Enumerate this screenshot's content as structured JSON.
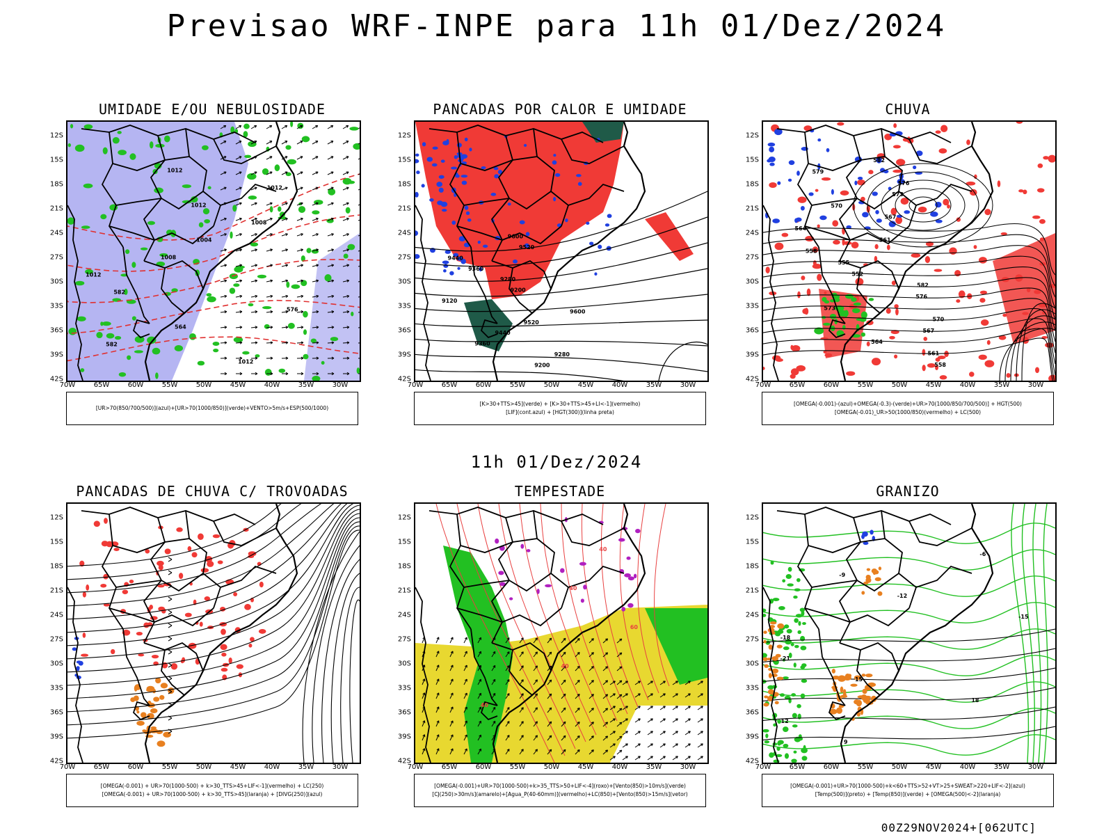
{
  "title": "Previsao WRF-INPE  para 11h 01/Dez/2024",
  "mid_title": "11h 01/Dez/2024",
  "footer": "00Z29NOV2024+[062UTC]",
  "lat_ticks": [
    "12S",
    "15S",
    "18S",
    "21S",
    "24S",
    "27S",
    "30S",
    "33S",
    "36S",
    "39S",
    "42S"
  ],
  "lon_ticks": [
    "70W",
    "65W",
    "60W",
    "55W",
    "50W",
    "45W",
    "40W",
    "35W",
    "30W"
  ],
  "colors": {
    "blue_shade": "#a8a8f0",
    "red_shade": "#f03a36",
    "green_contour": "#22c022",
    "dark_green": "#1f5a48",
    "yellow": "#e8d830",
    "orange": "#e88020",
    "purple": "#b020c0",
    "blue_contour": "#2040e0"
  },
  "panels": [
    {
      "title": "UMIDADE E/OU NEBULOSIDADE",
      "legend": [
        "[UR>70(850/700/500)](azul)+[UR>70(1000/850)](verde)+VENTO>5m/s+ESP(500/1000)"
      ],
      "contour_labels": [
        "1012",
        "1012",
        "1012",
        "1008",
        "1004",
        "1008",
        "1012",
        "582",
        "576",
        "564",
        "582",
        "1012"
      ]
    },
    {
      "title": "PANCADAS POR CALOR E UMIDADE",
      "legend": [
        "[K>30+TTS>45](verde) + [K>30+TTS>45+LI<-1](vermelho)",
        "[LIF](cont.azul) + [HGT(300)](linha preta)"
      ],
      "contour_labels": [
        "9600",
        "9520",
        "9440",
        "9360",
        "9280",
        "9200",
        "9120",
        "9600",
        "9520",
        "9440",
        "9360",
        "9280",
        "9200"
      ]
    },
    {
      "title": "CHUVA",
      "legend": [
        "[OMEGA(-0.001)-(azul)+OMEGA(-0.3)-(verde)+UR>70(1000/850/700/500)] + HGT(500)",
        "[OMEGA(-0.01)_UR>50(1000/850)(vermelho) + LC(500)"
      ],
      "contour_labels": [
        "582",
        "579",
        "576",
        "573",
        "570",
        "567",
        "564",
        "561",
        "558",
        "555",
        "552",
        "582",
        "576",
        "573",
        "570",
        "567",
        "564",
        "561",
        "558"
      ]
    },
    {
      "title": "PANCADAS DE CHUVA C/ TROVOADAS",
      "legend": [
        "[OMEGA(-0.001) + UR>70(1000-500) + k>30_TTS>45+LIF<-1](vermelho) + LC(250)",
        "[OMEGA(-0.001) + UR>70(1000-500) + k>30_TTS>45](laranja) + [DIVG(250)](azul)"
      ],
      "contour_labels": []
    },
    {
      "title": "TEMPESTADE",
      "legend": [
        "[OMEGA(-0.001)+UR>70(1000-500)+k>35_TTS>50+LIF<-4](roxo)+[Vento(850)>10m/s](verde)",
        "[CJ(250)>30m/s](amarelo)+[Agua_P(40-60mm)](vermelho)+LC(850)+[Vento(850)>15m/s](vetor)"
      ],
      "contour_labels": [
        "40",
        "40",
        "60",
        "40",
        "40"
      ]
    },
    {
      "title": "GRANIZO",
      "legend": [
        "[OMEGA(-0.001)+UR>70(1000-500)+k<60+TTS>52+VT>25+SWEAT>220+LIF<-2](azul)",
        "[Temp(500)](preto) + [Temp(850)](verde) + [OMEGA(500)<-2](laranja)"
      ],
      "contour_labels": [
        "-6",
        "-9",
        "-12",
        "-15",
        "-18",
        "-21",
        "15",
        "18",
        "12",
        "9"
      ]
    }
  ]
}
